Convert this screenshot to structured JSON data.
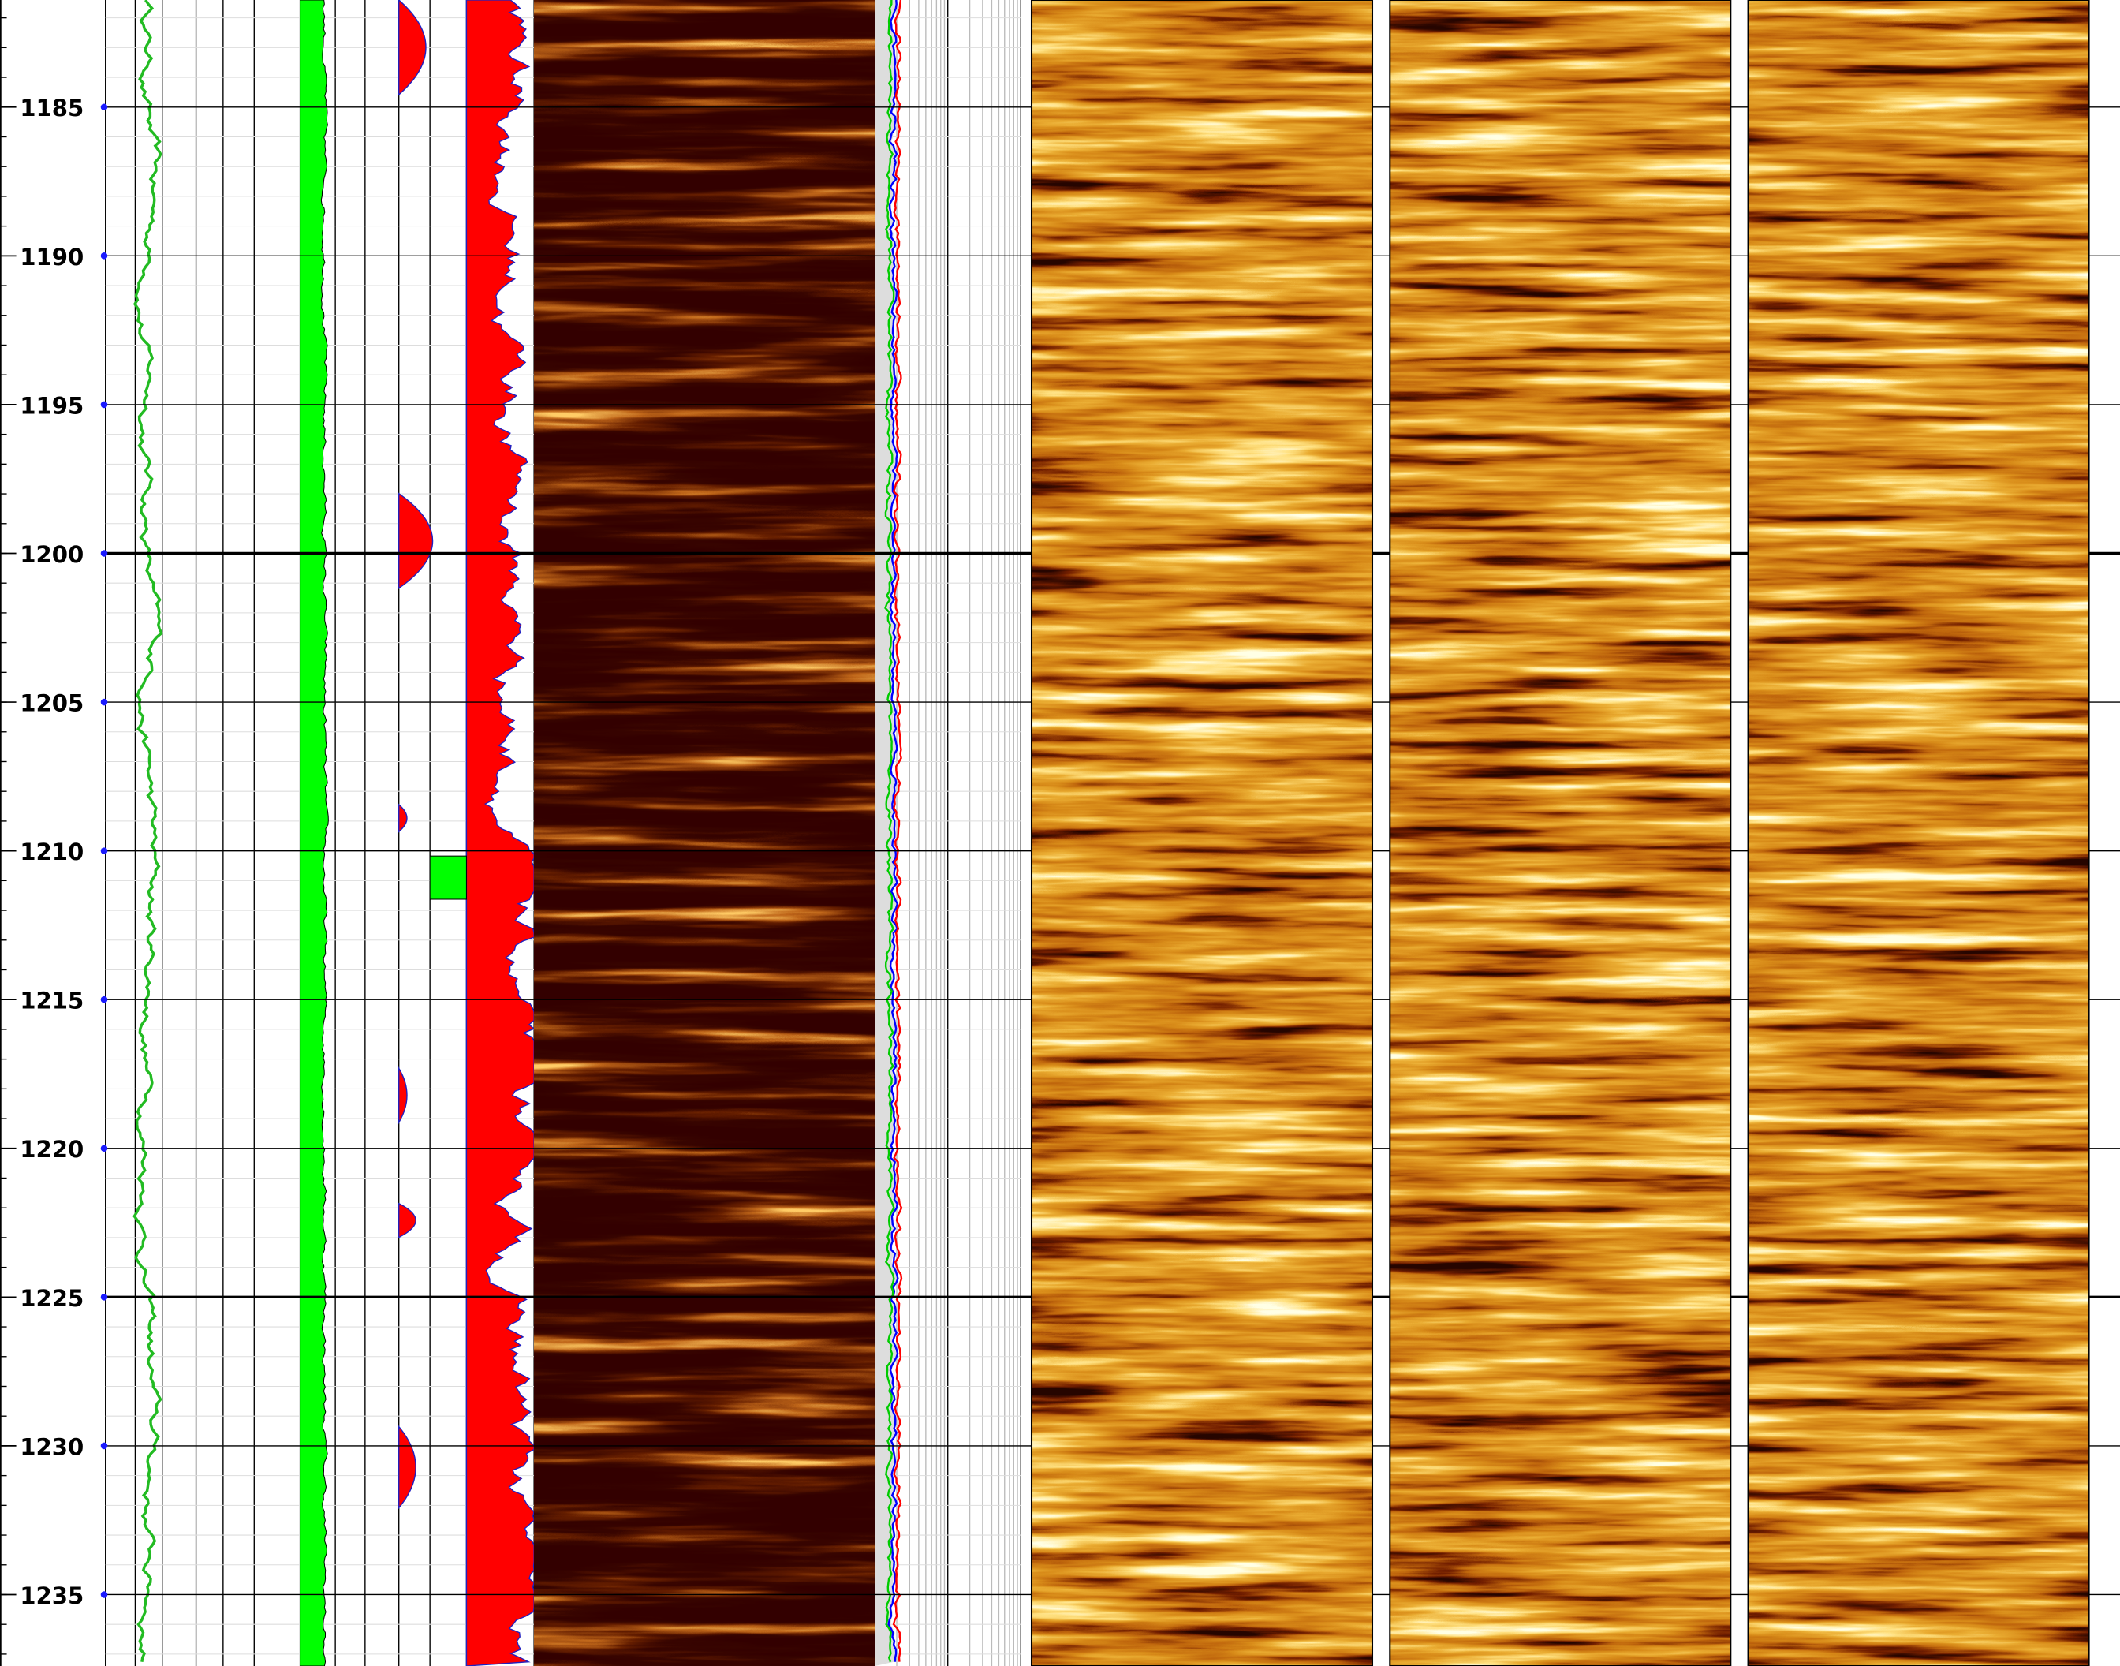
{
  "chart_data": {
    "type": "well-log",
    "ylim": [
      1181.4,
      1237.4
    ],
    "yticks": [
      1185,
      1190,
      1195,
      1200,
      1205,
      1210,
      1215,
      1220,
      1225,
      1230,
      1235
    ]
  }
}
